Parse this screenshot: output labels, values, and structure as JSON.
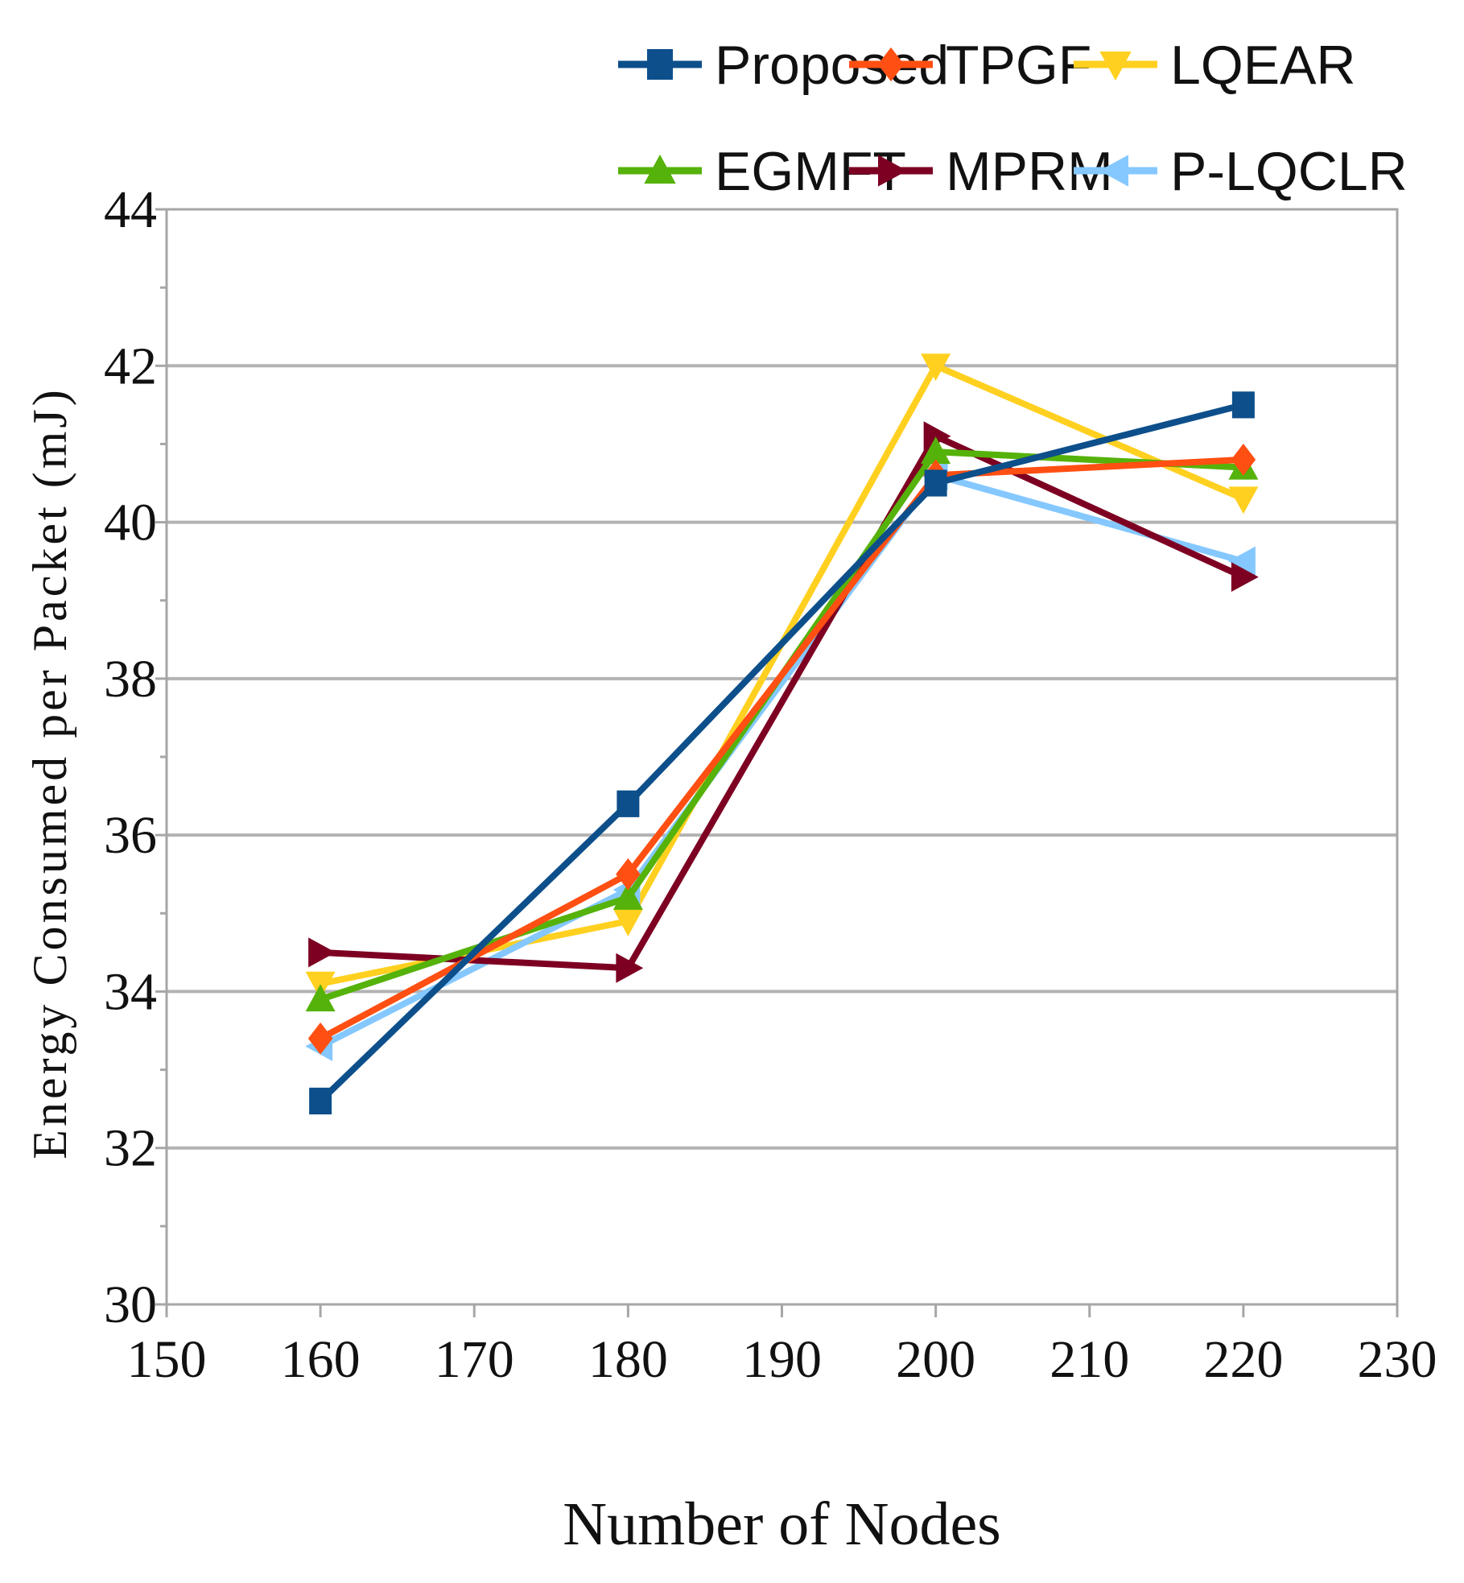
{
  "chart_data": {
    "type": "line",
    "title": "",
    "xlabel": "Number of Nodes",
    "ylabel": "Energy Consumed per Packet (mJ)",
    "xlim": [
      150,
      230
    ],
    "ylim": [
      30,
      44
    ],
    "xticks": [
      150,
      160,
      170,
      180,
      190,
      200,
      210,
      220,
      230
    ],
    "yticks": [
      30,
      32,
      34,
      36,
      38,
      40,
      42,
      44
    ],
    "grid": "horizontal",
    "legend_position": "top",
    "x": [
      160,
      180,
      200,
      220
    ],
    "series": [
      {
        "name": "Proposed",
        "color": "#0d4f8b",
        "marker": "square",
        "values": [
          32.6,
          36.4,
          40.5,
          41.5
        ]
      },
      {
        "name": "TPGF",
        "color": "#ff4f12",
        "marker": "diamond",
        "values": [
          33.4,
          35.5,
          40.6,
          40.8
        ]
      },
      {
        "name": "LQEAR",
        "color": "#ffd01f",
        "marker": "triangle-down",
        "values": [
          34.1,
          34.9,
          42.0,
          40.3
        ]
      },
      {
        "name": "EGMFT",
        "color": "#55b20a",
        "marker": "triangle-up",
        "values": [
          33.9,
          35.2,
          40.9,
          40.7
        ]
      },
      {
        "name": "MPRM",
        "color": "#7d0022",
        "marker": "triangle-right",
        "values": [
          34.5,
          34.3,
          41.1,
          39.3
        ]
      },
      {
        "name": "P-LQCLR",
        "color": "#85c8ff",
        "marker": "triangle-left",
        "values": [
          33.3,
          35.3,
          40.6,
          39.5
        ]
      }
    ]
  }
}
